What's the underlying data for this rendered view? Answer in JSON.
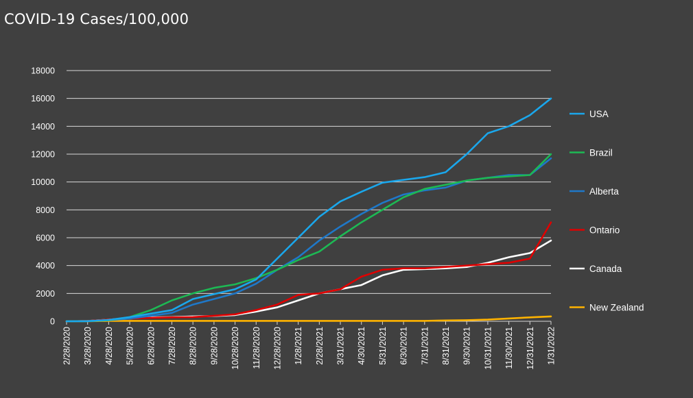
{
  "chart_data": {
    "type": "line",
    "title": "COVID-19 Cases/100,000",
    "xlabel": "",
    "ylabel": "",
    "ylim": [
      0,
      18000
    ],
    "yticks": [
      0,
      2000,
      4000,
      6000,
      8000,
      10000,
      12000,
      14000,
      16000,
      18000
    ],
    "grid": "horizontal",
    "legend_position": "right",
    "categories": [
      "2/28/2020",
      "3/28/2020",
      "4/28/2020",
      "5/28/2020",
      "6/28/2020",
      "7/28/2020",
      "8/28/2020",
      "9/28/2020",
      "10/28/2020",
      "11/28/2020",
      "12/28/2020",
      "1/28/2021",
      "2/28/2021",
      "3/31/2021",
      "4/30/2021",
      "5/31/2021",
      "6/30/2021",
      "7/31/2021",
      "8/31/2021",
      "9/30/2021",
      "10/31/2021",
      "11/30/2021",
      "12/31/2021",
      "1/31/2022"
    ],
    "series": [
      {
        "name": "USA",
        "color": "#1aa7ec",
        "values": [
          0,
          10,
          100,
          300,
          550,
          800,
          1600,
          1950,
          2300,
          3000,
          4500,
          6000,
          7500,
          8600,
          9300,
          9950,
          10150,
          10350,
          10700,
          12000,
          13500,
          14000,
          14800,
          16000
        ]
      },
      {
        "name": "Brazil",
        "color": "#1db954",
        "values": [
          0,
          10,
          80,
          300,
          800,
          1500,
          2000,
          2400,
          2650,
          3100,
          3700,
          4400,
          5000,
          6100,
          7100,
          8000,
          8900,
          9500,
          9800,
          10100,
          10300,
          10400,
          10500,
          12000
        ]
      },
      {
        "name": "Alberta",
        "color": "#1f78c8",
        "values": [
          0,
          10,
          80,
          200,
          400,
          600,
          1200,
          1600,
          2000,
          2700,
          3700,
          4600,
          5800,
          6800,
          7700,
          8500,
          9100,
          9400,
          9600,
          10100,
          10300,
          10500,
          10500,
          11700
        ]
      },
      {
        "name": "Ontario",
        "color": "#e00000",
        "values": [
          0,
          20,
          120,
          200,
          250,
          280,
          300,
          400,
          500,
          800,
          1200,
          1900,
          2000,
          2300,
          3200,
          3700,
          3800,
          3800,
          3900,
          4000,
          4100,
          4200,
          4500,
          7100
        ]
      },
      {
        "name": "Canada",
        "color": "#ffffff",
        "values": [
          0,
          20,
          120,
          200,
          280,
          300,
          350,
          380,
          450,
          700,
          1000,
          1500,
          2000,
          2300,
          2600,
          3300,
          3700,
          3750,
          3800,
          3900,
          4200,
          4600,
          4900,
          5800
        ]
      },
      {
        "name": "New Zealand",
        "color": "#ffb300",
        "values": [
          0,
          5,
          30,
          30,
          30,
          30,
          30,
          30,
          30,
          30,
          30,
          30,
          30,
          30,
          30,
          30,
          30,
          30,
          60,
          80,
          120,
          200,
          280,
          350
        ]
      }
    ]
  }
}
